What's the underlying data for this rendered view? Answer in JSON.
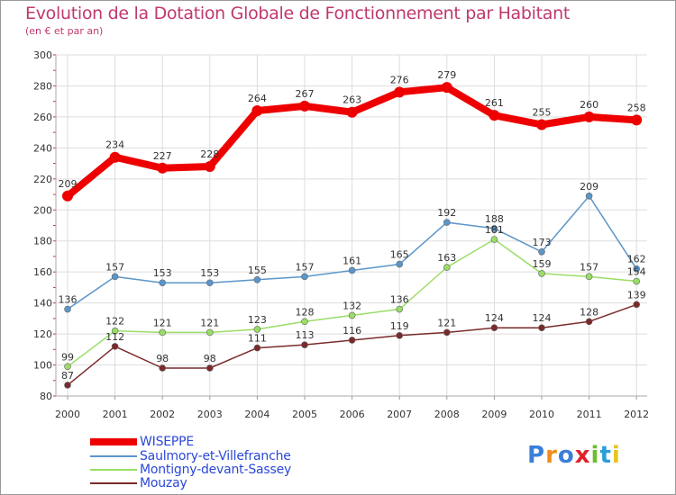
{
  "chart_data": {
    "type": "line",
    "title": "Evolution de la Dotation Globale de Fonctionnement par Habitant",
    "subtitle": "(en € et par an)",
    "xlabel": "",
    "ylabel": "",
    "x": [
      "2000",
      "2001",
      "2002",
      "2003",
      "2004",
      "2005",
      "2006",
      "2007",
      "2008",
      "2009",
      "2010",
      "2011",
      "2012"
    ],
    "ylim": [
      80,
      300
    ],
    "yticks": [
      "80",
      "100",
      "120",
      "140",
      "160",
      "180",
      "200",
      "220",
      "240",
      "260",
      "280",
      "300"
    ],
    "grid": true,
    "legend_position": "bottom-left",
    "series": [
      {
        "name": "WISEPPE",
        "color": "#ee0000",
        "values": [
          209,
          234,
          227,
          228,
          264,
          267,
          263,
          276,
          279,
          261,
          255,
          260,
          258
        ]
      },
      {
        "name": "Saulmory-et-Villefranche",
        "color": "#5b95c9",
        "values": [
          136,
          157,
          153,
          153,
          155,
          157,
          161,
          165,
          192,
          188,
          173,
          209,
          162
        ]
      },
      {
        "name": "Montigny-devant-Sassey",
        "color": "#99dd66",
        "values": [
          99,
          122,
          121,
          121,
          123,
          128,
          132,
          136,
          163,
          181,
          159,
          157,
          154
        ]
      },
      {
        "name": "Mouzay",
        "color": "#7a2a2a",
        "values": [
          87,
          112,
          98,
          98,
          111,
          113,
          116,
          119,
          121,
          124,
          124,
          128,
          139
        ]
      }
    ]
  },
  "logo": {
    "text": "Proxiti"
  }
}
